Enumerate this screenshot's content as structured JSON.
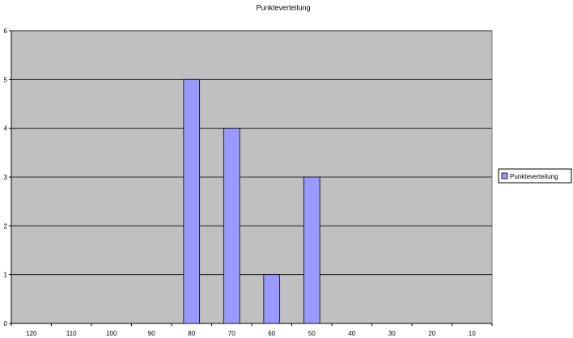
{
  "chart_data": {
    "type": "bar",
    "title": "Punkteverteilung",
    "xlabel": "",
    "ylabel": "",
    "categories": [
      "120",
      "110",
      "100",
      "90",
      "80",
      "70",
      "60",
      "50",
      "40",
      "30",
      "20",
      "10"
    ],
    "series": [
      {
        "name": "Punkteverteilung",
        "values": [
          0,
          0,
          0,
          0,
          5,
          4,
          1,
          3,
          0,
          0,
          0,
          0
        ]
      }
    ],
    "ylim": [
      0,
      6
    ],
    "yticks": [
      0,
      1,
      2,
      3,
      4,
      5,
      6
    ],
    "grid": true,
    "legend": "right",
    "colors": {
      "plot_background": "#c0c0c0",
      "bar_fill": "#9999ff",
      "bar_stroke": "#000000",
      "gridline": "#000000"
    }
  }
}
